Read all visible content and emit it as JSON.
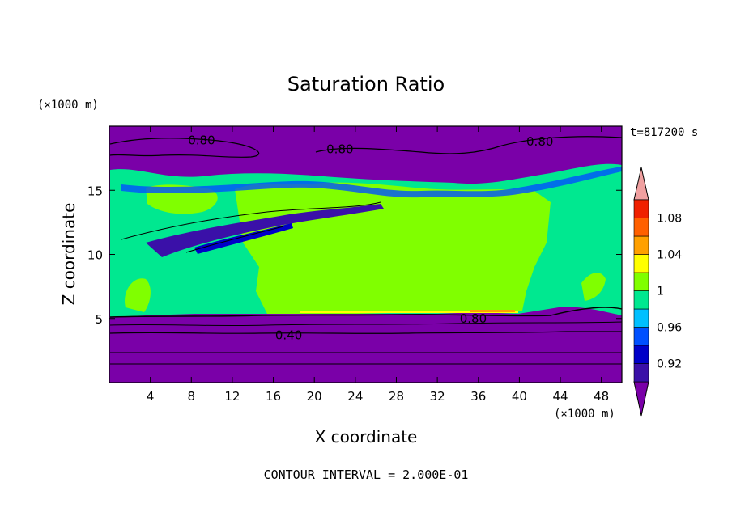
{
  "chart_data": {
    "type": "heatmap",
    "title": "Saturation Ratio",
    "xlabel": "X coordinate",
    "ylabel": "Z coordinate",
    "x_unit": "(×1000 m)",
    "y_unit": "(×1000 m)",
    "time_label": "t=817200 s",
    "footer": "CONTOUR INTERVAL = 2.000E-01",
    "xlim": [
      0,
      50
    ],
    "ylim": [
      0,
      20
    ],
    "x_ticks": [
      4,
      8,
      12,
      16,
      20,
      24,
      28,
      32,
      36,
      40,
      44,
      48
    ],
    "y_ticks": [
      5,
      10,
      15
    ],
    "colorbar": {
      "labels": [
        "0.92",
        "0.96",
        "1",
        "1.04",
        "1.08"
      ],
      "bins": [
        {
          "from": null,
          "to": 0.9,
          "color": "#7a00a8"
        },
        {
          "from": 0.9,
          "to": 0.92,
          "color": "#3a10a8"
        },
        {
          "from": 0.92,
          "to": 0.94,
          "color": "#0000c8"
        },
        {
          "from": 0.94,
          "to": 0.96,
          "color": "#0050ff"
        },
        {
          "from": 0.96,
          "to": 0.98,
          "color": "#00c0ff"
        },
        {
          "from": 0.98,
          "to": 1.0,
          "color": "#00e890"
        },
        {
          "from": 1.0,
          "to": 1.02,
          "color": "#80ff00"
        },
        {
          "from": 1.02,
          "to": 1.04,
          "color": "#ffff00"
        },
        {
          "from": 1.04,
          "to": 1.06,
          "color": "#ffa000"
        },
        {
          "from": 1.06,
          "to": 1.08,
          "color": "#ff6000"
        },
        {
          "from": 1.08,
          "to": 1.1,
          "color": "#f02000"
        },
        {
          "from": 1.1,
          "to": null,
          "color": "#f0a0a0"
        }
      ]
    },
    "regions": [
      {
        "name": "upper-dry-layer",
        "z_range": [
          16.5,
          20
        ],
        "color": "#7a00a8"
      },
      {
        "name": "mid-layer-near-saturation",
        "z_range": [
          5.3,
          17
        ],
        "color": "#00e890"
      },
      {
        "name": "supersaturated-core",
        "x_range": [
          11,
          41
        ],
        "z_range": [
          5.3,
          15
        ],
        "color": "#80ff00"
      },
      {
        "name": "lower-dry-layer",
        "z_range": [
          0,
          5.3
        ],
        "color": "#7a00a8"
      }
    ],
    "contour_labels": [
      {
        "text": "0.80",
        "x": 9,
        "z": 18.9
      },
      {
        "text": "0.80",
        "x": 22.5,
        "z": 18.2
      },
      {
        "text": "0.80",
        "x": 42,
        "z": 18.8
      },
      {
        "text": "0.80",
        "x": 35.5,
        "z": 5.0
      },
      {
        "text": "0.40",
        "x": 17.5,
        "z": 3.7
      }
    ]
  }
}
